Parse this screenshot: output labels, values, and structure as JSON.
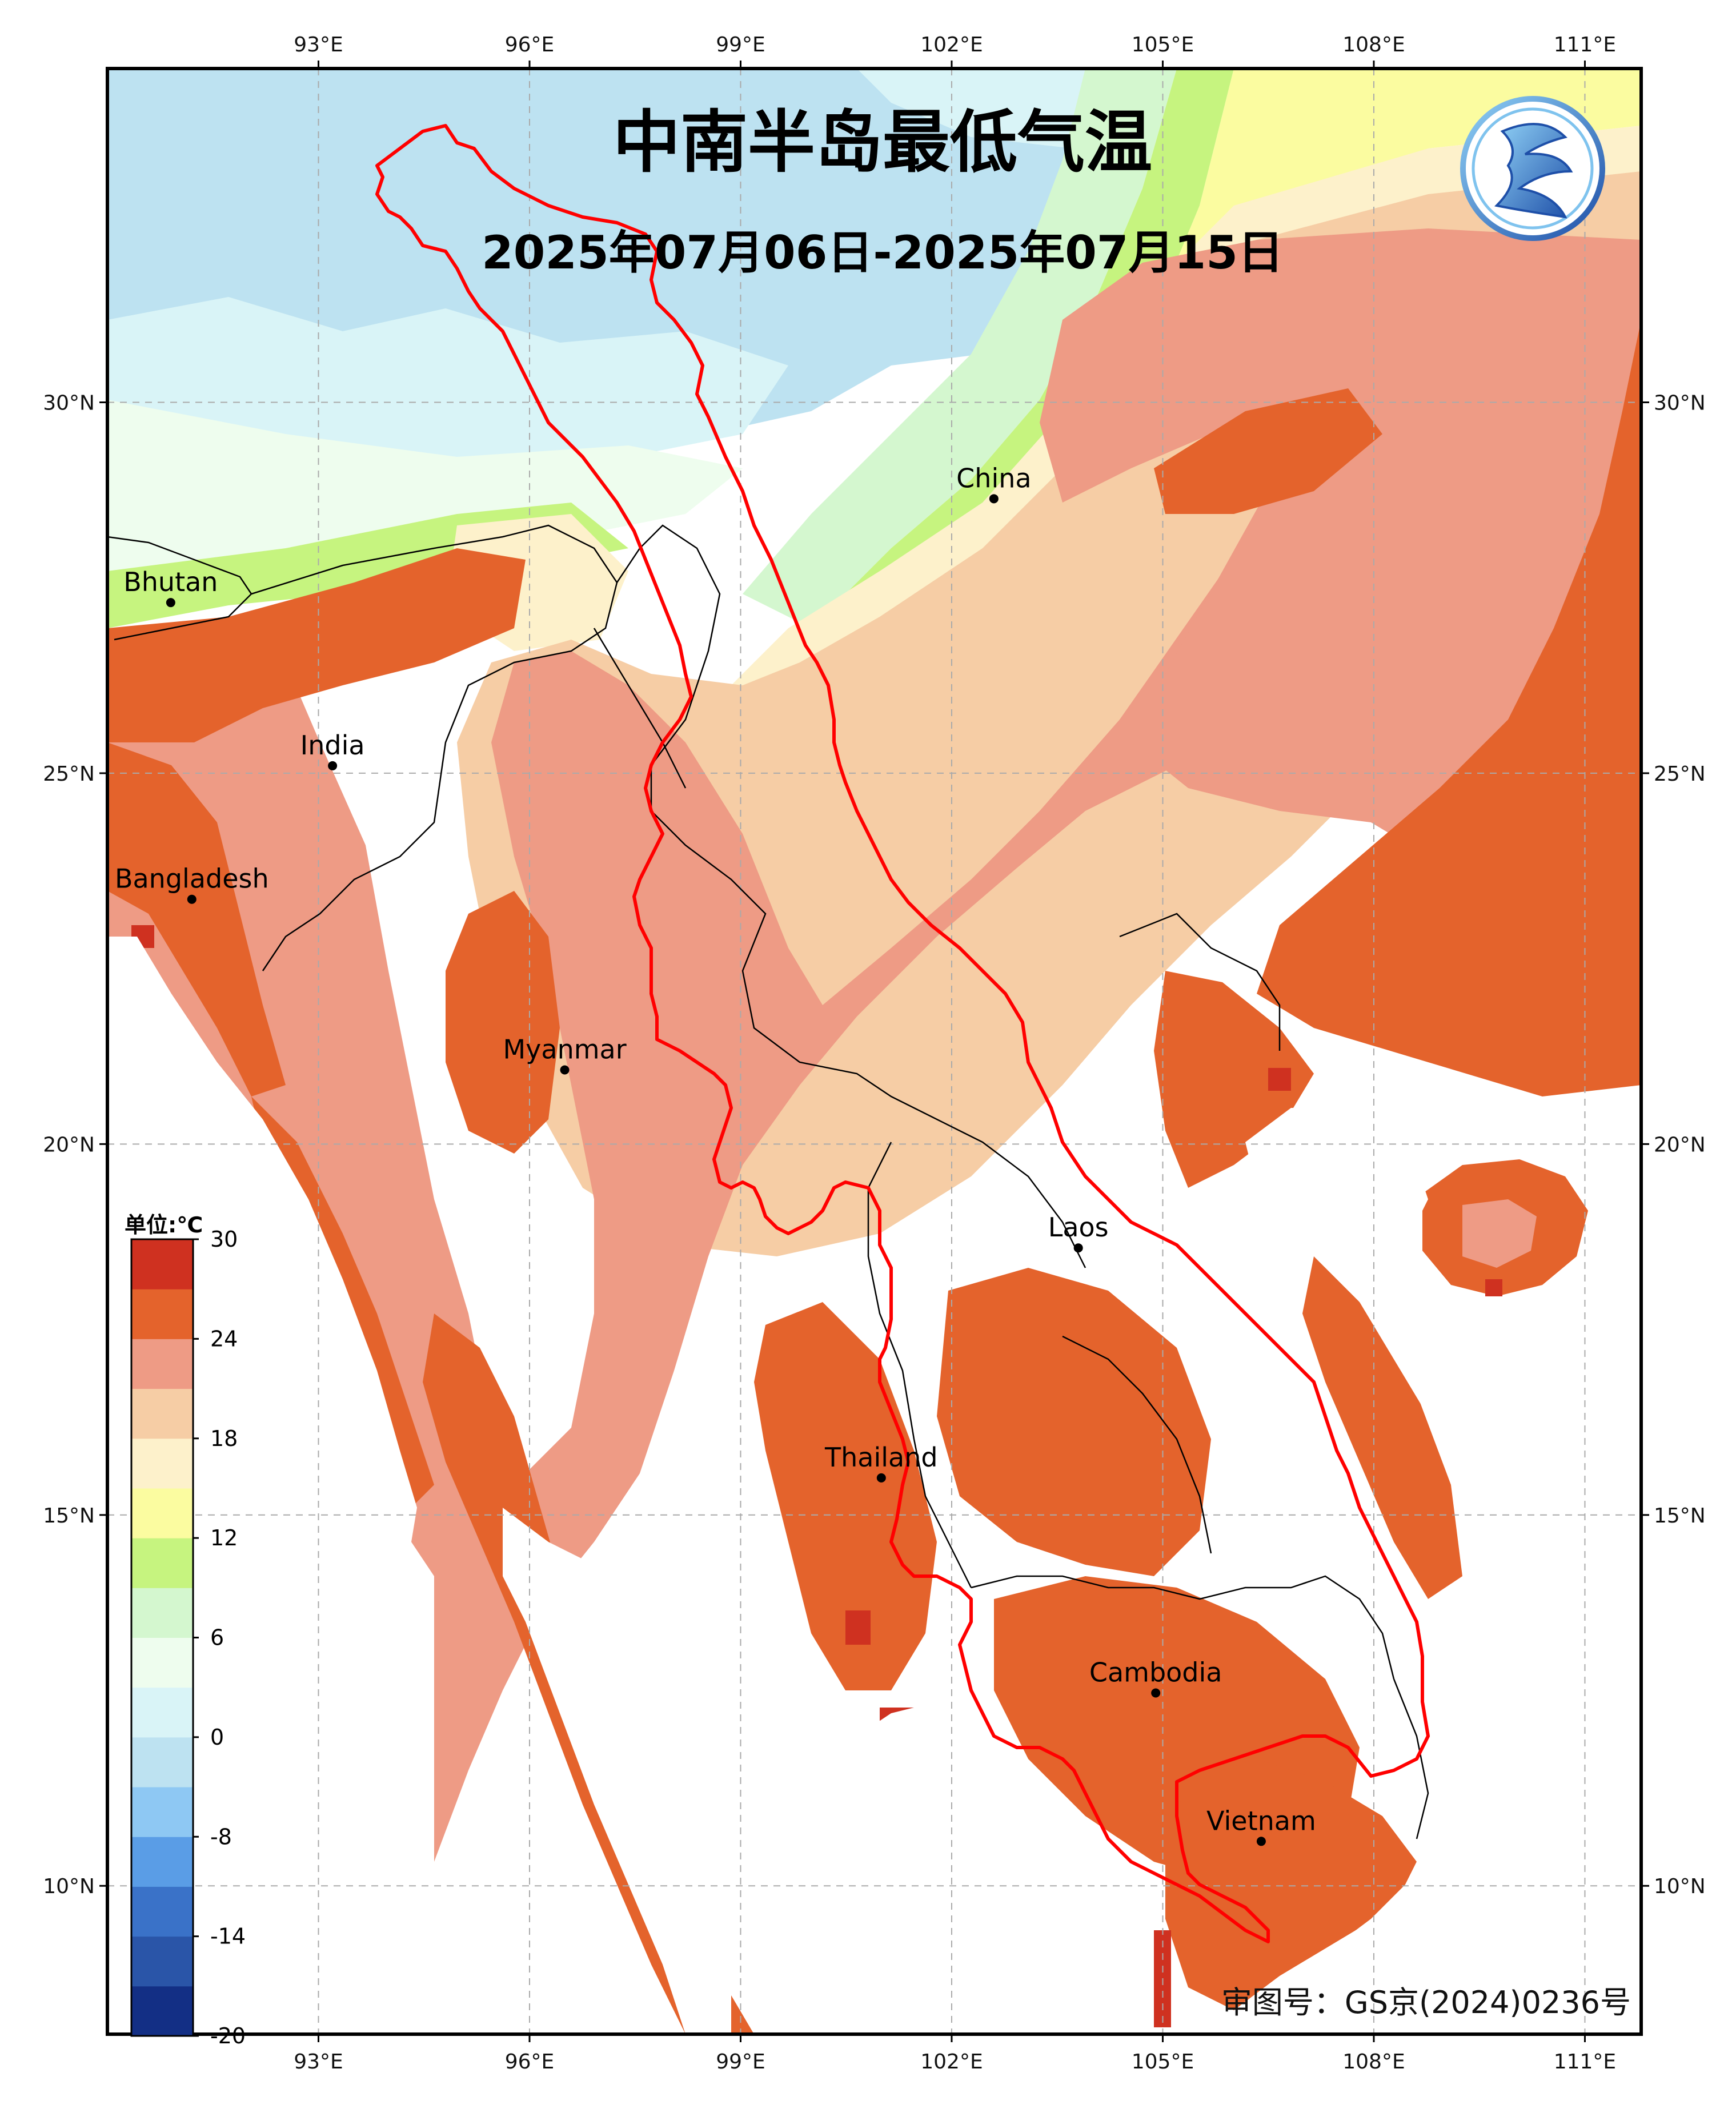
{
  "title": "中南半岛最低气温",
  "date_range": "2025年07月06日-2025年07月15日",
  "approval_number": "审图号：GS京(2024)0236号",
  "logo": {
    "icon": "weather-service-logo-icon",
    "color": "#1e63c6"
  },
  "axes": {
    "longitude_ticks": [
      "93°E",
      "96°E",
      "99°E",
      "102°E",
      "105°E",
      "108°E",
      "111°E"
    ],
    "latitude_ticks": [
      "30°N",
      "25°N",
      "20°N",
      "15°N",
      "10°N"
    ],
    "lon_range": [
      90.0,
      111.8
    ],
    "lat_range": [
      8.0,
      34.5
    ],
    "grid": true
  },
  "countries": [
    {
      "name": "Bhutan",
      "lon": 90.9,
      "lat": 27.3
    },
    {
      "name": "India",
      "lon": 93.2,
      "lat": 25.1
    },
    {
      "name": "Bangladesh",
      "lon": 91.2,
      "lat": 23.3
    },
    {
      "name": "China",
      "lon": 102.6,
      "lat": 28.7
    },
    {
      "name": "Myanmar",
      "lon": 96.5,
      "lat": 21.0
    },
    {
      "name": "Laos",
      "lon": 103.8,
      "lat": 18.6
    },
    {
      "name": "Thailand",
      "lon": 101.0,
      "lat": 15.5
    },
    {
      "name": "Cambodia",
      "lon": 104.9,
      "lat": 12.6
    },
    {
      "name": "Vietnam",
      "lon": 106.4,
      "lat": 10.6
    }
  ],
  "colorbar": {
    "unit_label": "单位:℃",
    "tick_labels": [
      "30",
      "24",
      "18",
      "12",
      "6",
      "0",
      "-8",
      "-14",
      "-20"
    ],
    "colors": [
      "#132f85",
      "#2a55a8",
      "#3a72c8",
      "#5a9de6",
      "#8ec8f3",
      "#bde2f1",
      "#d9f4f7",
      "#eefdee",
      "#d4f7cf",
      "#c6f47f",
      "#fbfca0",
      "#fdf1cb",
      "#f6cda5",
      "#ee9b85",
      "#e4632c",
      "#cf3120"
    ]
  },
  "temperature_categories": {
    "cold": "#bde2f1",
    "cool": "#d9f4f7",
    "mild_green": "#c6f47f",
    "yellow": "#fbfca0",
    "cream": "#fdf1cb",
    "peach": "#f6cda5",
    "salmon": "#ee9b85",
    "orange": "#e4632c",
    "dark_red": "#cf3120"
  },
  "border_color": "#ff0000"
}
